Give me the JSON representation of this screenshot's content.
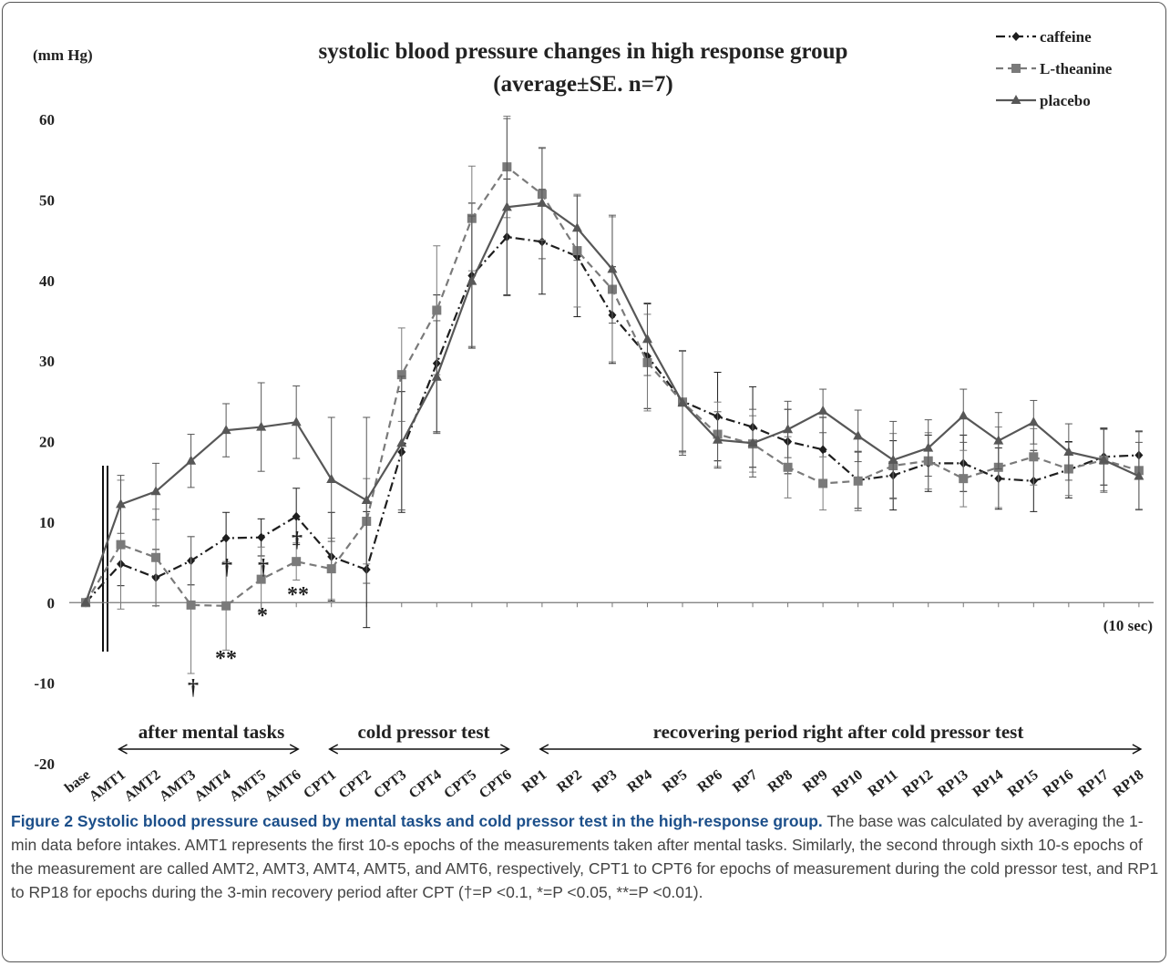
{
  "chart_data": {
    "type": "line",
    "title": "systolic blood pressure changes in high response group",
    "subtitle": "(average±SE. n=7)",
    "y_label": "(mm Hg)",
    "x_label": "(10 sec)",
    "categories": [
      "base",
      "AMT1",
      "AMT2",
      "AMT3",
      "AMT4",
      "AMT5",
      "AMT6",
      "CPT1",
      "CPT2",
      "CPT3",
      "CPT4",
      "CPT5",
      "CPT6",
      "RP1",
      "RP2",
      "RP3",
      "RP4",
      "RP5",
      "RP6",
      "RP7",
      "RP8",
      "RP9",
      "RP10",
      "RP11",
      "RP12",
      "RP13",
      "RP14",
      "RP15",
      "RP16",
      "RP17",
      "RP18"
    ],
    "series": [
      {
        "name": "caffeine",
        "color": "#1e1e1e",
        "dash": "10,4,2,4",
        "marker": "diamond",
        "values": [
          0,
          4.8,
          3.1,
          5.2,
          8.0,
          8.1,
          10.7,
          5.7,
          4.1,
          18.7,
          29.7,
          40.6,
          45.4,
          44.8,
          43.0,
          35.7,
          30.6,
          25.0,
          23.1,
          21.8,
          20.0,
          19.0,
          15.2,
          15.8,
          17.3,
          17.3,
          15.4,
          15.1,
          16.5,
          18.1,
          18.3
        ],
        "errors": [
          0,
          2.7,
          3.5,
          3.0,
          3.2,
          2.3,
          3.5,
          5.5,
          7.2,
          7.5,
          8.5,
          9.0,
          7.2,
          6.5,
          7.5,
          6.0,
          6.5,
          6.2,
          5.5,
          5.0,
          4.0,
          4.0,
          3.5,
          4.3,
          3.5,
          3.5,
          3.8,
          3.8,
          3.5,
          3.5,
          3.0
        ]
      },
      {
        "name": "L-theanine",
        "color": "#7a7a7a",
        "dash": "8,5",
        "marker": "square",
        "values": [
          0,
          7.2,
          5.6,
          -0.3,
          -0.4,
          2.9,
          5.1,
          4.2,
          10.1,
          28.3,
          36.3,
          47.7,
          54.1,
          50.7,
          43.7,
          38.9,
          29.8,
          24.9,
          20.9,
          19.7,
          16.8,
          14.8,
          15.1,
          17.0,
          17.6,
          15.4,
          16.8,
          18.1,
          16.6,
          17.7,
          16.4
        ],
        "errors": [
          0,
          8.0,
          6.0,
          8.5,
          5.5,
          4.0,
          2.3,
          3.8,
          5.3,
          5.8,
          8.0,
          6.5,
          6.3,
          5.7,
          7.0,
          9.0,
          6.0,
          6.3,
          4.0,
          3.5,
          3.8,
          3.3,
          3.7,
          4.0,
          3.5,
          3.5,
          5.0,
          3.5,
          3.3,
          3.8,
          4.8
        ]
      },
      {
        "name": "placebo",
        "color": "#575757",
        "dash": "",
        "marker": "triangle",
        "values": [
          0,
          12.2,
          13.8,
          17.6,
          21.4,
          21.8,
          22.4,
          15.3,
          12.7,
          19.8,
          28.0,
          39.9,
          49.1,
          49.6,
          46.5,
          41.4,
          32.7,
          24.8,
          20.2,
          19.8,
          21.5,
          23.8,
          20.7,
          17.7,
          19.2,
          23.2,
          20.1,
          22.4,
          18.7,
          17.7,
          15.7
        ],
        "errors": [
          0,
          3.6,
          3.5,
          3.3,
          3.3,
          5.5,
          4.5,
          7.7,
          10.3,
          8.3,
          7.0,
          8.1,
          11.0,
          6.9,
          4.0,
          6.7,
          4.5,
          6.5,
          3.5,
          4.2,
          3.5,
          2.7,
          3.2,
          4.8,
          3.5,
          3.3,
          3.5,
          2.7,
          3.5,
          4.0,
          4.2
        ]
      }
    ],
    "ylim": [
      -20,
      60
    ],
    "yticks": [
      -20,
      -10,
      0,
      10,
      20,
      30,
      40,
      50,
      60
    ],
    "legend": "top-right",
    "annotations": [
      "†",
      "**",
      "†",
      "*",
      "†",
      "**",
      "†"
    ],
    "periods": [
      "after mental tasks",
      "cold pressor test",
      "recovering period right after cold pressor test"
    ]
  },
  "caption": {
    "title": "Figure 2 Systolic blood pressure caused by mental tasks and cold pressor test in the high-response group.",
    "text": "The base was calculated by averaging the 1-min data before intakes. AMT1 represents the first 10-s epochs of the measurements taken after mental tasks. Similarly, the second through sixth 10-s epochs of the measurement are called AMT2, AMT3, AMT4, AMT5, and AMT6, respectively, CPT1 to CPT6 for epochs of measurement during the cold pressor test, and RP1 to RP18 for epochs during the 3-min recovery period after CPT (†=P <0.1, *=P <0.05, **=P <0.01)."
  }
}
